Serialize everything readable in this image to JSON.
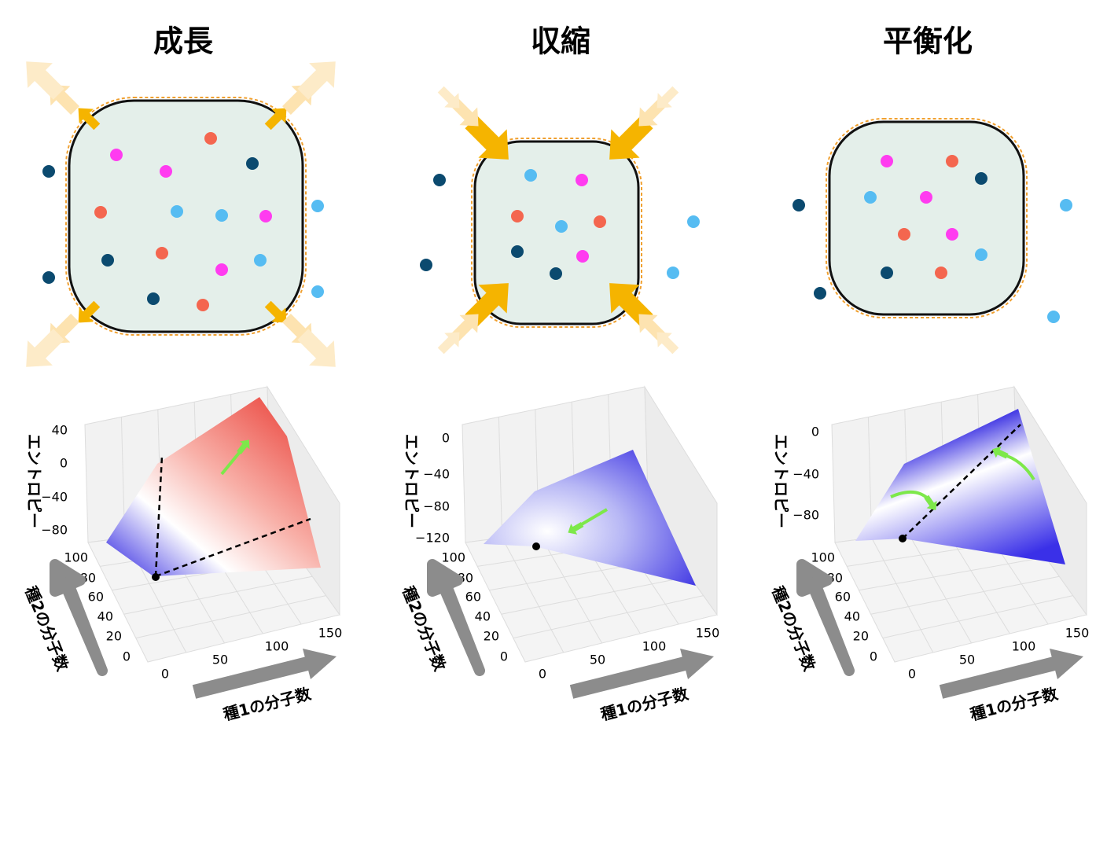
{
  "panels": [
    {
      "title": "成長",
      "z_label": "エントロピー",
      "y_label": "種2の分子数",
      "x_label": "種1の分子数",
      "z_ticks": [
        "40",
        "0",
        "−40",
        "−80"
      ],
      "y_ticks": [
        "100",
        "80",
        "60",
        "40",
        "20",
        "0"
      ],
      "x_ticks": [
        "0",
        "50",
        "100",
        "150"
      ]
    },
    {
      "title": "収縮",
      "z_label": "エントロピー",
      "y_label": "種2の分子数",
      "x_label": "種1の分子数",
      "z_ticks": [
        "0",
        "−40",
        "−80",
        "−120"
      ],
      "y_ticks": [
        "100",
        "80",
        "60",
        "40",
        "20",
        "0"
      ],
      "x_ticks": [
        "0",
        "50",
        "100",
        "150"
      ]
    },
    {
      "title": "平衡化",
      "z_label": "エントロピー",
      "y_label": "種2の分子数",
      "x_label": "種1の分子数",
      "z_ticks": [
        "0",
        "−40",
        "−80"
      ],
      "y_ticks": [
        "100",
        "80",
        "60",
        "40",
        "20",
        "0"
      ],
      "x_ticks": [
        "0",
        "50",
        "100",
        "150"
      ]
    }
  ]
}
